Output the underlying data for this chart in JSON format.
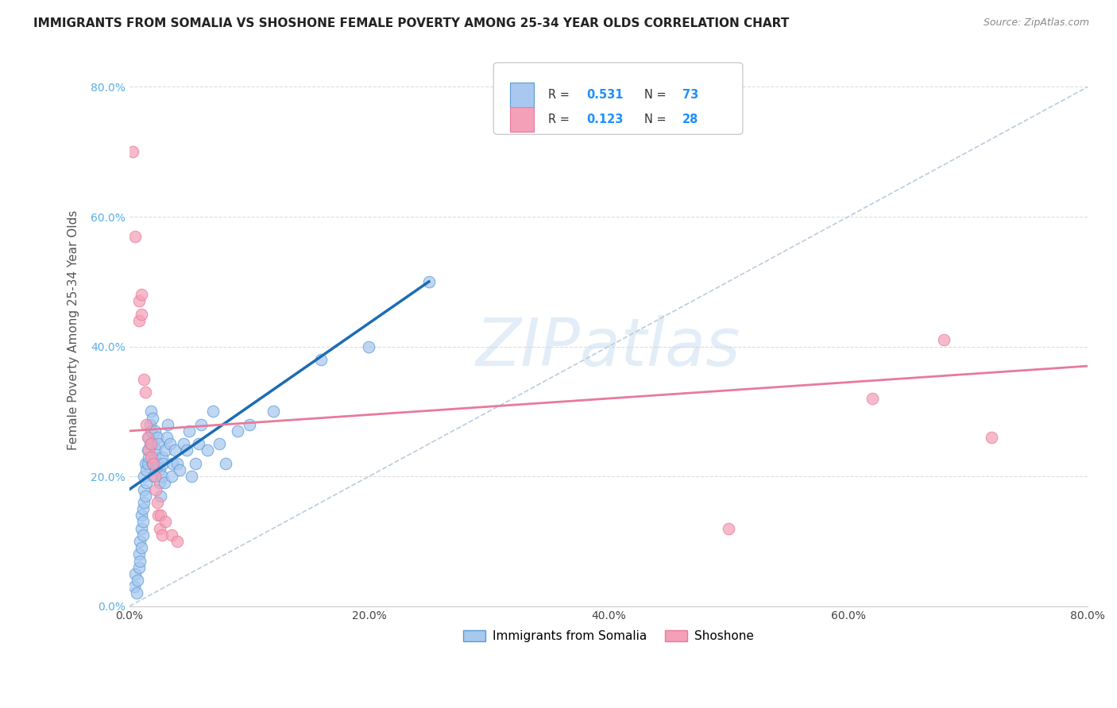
{
  "title": "IMMIGRANTS FROM SOMALIA VS SHOSHONE FEMALE POVERTY AMONG 25-34 YEAR OLDS CORRELATION CHART",
  "source": "Source: ZipAtlas.com",
  "ylabel": "Female Poverty Among 25-34 Year Olds",
  "ytick_values": [
    0,
    20,
    40,
    60,
    80
  ],
  "xtick_values": [
    0,
    20,
    40,
    60,
    80
  ],
  "xlim": [
    0,
    80
  ],
  "ylim": [
    0,
    85
  ],
  "somalia_color": "#A8C8F0",
  "shoshone_color": "#F4A0B8",
  "somalia_edge": "#5A9BD4",
  "shoshone_edge": "#E87A9A",
  "R_somalia": 0.531,
  "N_somalia": 73,
  "R_shoshone": 0.123,
  "N_shoshone": 28,
  "legend_R_color": "#1E90FF",
  "legend_N_color": "#1E90FF",
  "trendline_somalia_color": "#1C6CB5",
  "trendline_shoshone_color": "#E87A9A",
  "diagonal_color": "#BBCCDD",
  "watermark": "ZIPatlas",
  "somalia_points": [
    [
      0.4,
      3
    ],
    [
      0.5,
      5
    ],
    [
      0.6,
      2
    ],
    [
      0.7,
      4
    ],
    [
      0.8,
      6
    ],
    [
      0.8,
      8
    ],
    [
      0.9,
      7
    ],
    [
      0.9,
      10
    ],
    [
      1.0,
      9
    ],
    [
      1.0,
      12
    ],
    [
      1.0,
      14
    ],
    [
      1.1,
      11
    ],
    [
      1.1,
      15
    ],
    [
      1.1,
      13
    ],
    [
      1.2,
      16
    ],
    [
      1.2,
      18
    ],
    [
      1.2,
      20
    ],
    [
      1.3,
      17
    ],
    [
      1.3,
      22
    ],
    [
      1.4,
      19
    ],
    [
      1.4,
      21
    ],
    [
      1.5,
      24
    ],
    [
      1.5,
      22
    ],
    [
      1.6,
      26
    ],
    [
      1.6,
      23
    ],
    [
      1.7,
      25
    ],
    [
      1.7,
      28
    ],
    [
      1.8,
      27
    ],
    [
      1.8,
      30
    ],
    [
      1.9,
      29
    ],
    [
      1.9,
      22
    ],
    [
      2.0,
      25
    ],
    [
      2.0,
      20
    ],
    [
      2.1,
      23
    ],
    [
      2.1,
      27
    ],
    [
      2.2,
      21
    ],
    [
      2.2,
      24
    ],
    [
      2.3,
      22
    ],
    [
      2.3,
      26
    ],
    [
      2.4,
      25
    ],
    [
      2.5,
      19
    ],
    [
      2.5,
      21
    ],
    [
      2.6,
      17
    ],
    [
      2.7,
      20
    ],
    [
      2.7,
      23
    ],
    [
      2.8,
      22
    ],
    [
      2.9,
      19
    ],
    [
      3.0,
      24
    ],
    [
      3.1,
      26
    ],
    [
      3.2,
      28
    ],
    [
      3.4,
      25
    ],
    [
      3.5,
      20
    ],
    [
      3.6,
      22
    ],
    [
      3.8,
      24
    ],
    [
      4.0,
      22
    ],
    [
      4.2,
      21
    ],
    [
      4.5,
      25
    ],
    [
      4.8,
      24
    ],
    [
      5.0,
      27
    ],
    [
      5.2,
      20
    ],
    [
      5.5,
      22
    ],
    [
      5.8,
      25
    ],
    [
      6.0,
      28
    ],
    [
      6.5,
      24
    ],
    [
      7.0,
      30
    ],
    [
      7.5,
      25
    ],
    [
      8.0,
      22
    ],
    [
      9.0,
      27
    ],
    [
      10.0,
      28
    ],
    [
      12.0,
      30
    ],
    [
      16.0,
      38
    ],
    [
      20.0,
      40
    ],
    [
      25.0,
      50
    ]
  ],
  "shoshone_points": [
    [
      0.3,
      70
    ],
    [
      0.5,
      57
    ],
    [
      0.8,
      47
    ],
    [
      0.8,
      44
    ],
    [
      1.0,
      48
    ],
    [
      1.0,
      45
    ],
    [
      1.2,
      35
    ],
    [
      1.3,
      33
    ],
    [
      1.4,
      28
    ],
    [
      1.5,
      26
    ],
    [
      1.6,
      24
    ],
    [
      1.8,
      25
    ],
    [
      1.8,
      23
    ],
    [
      2.0,
      22
    ],
    [
      2.1,
      20
    ],
    [
      2.2,
      18
    ],
    [
      2.3,
      16
    ],
    [
      2.4,
      14
    ],
    [
      2.5,
      12
    ],
    [
      2.6,
      14
    ],
    [
      2.7,
      11
    ],
    [
      3.0,
      13
    ],
    [
      3.5,
      11
    ],
    [
      4.0,
      10
    ],
    [
      50.0,
      12
    ],
    [
      62.0,
      32
    ],
    [
      68.0,
      41
    ],
    [
      72.0,
      26
    ]
  ],
  "somalia_trendline": [
    [
      0,
      18
    ],
    [
      25,
      50
    ]
  ],
  "shoshone_trendline": [
    [
      0,
      27
    ],
    [
      80,
      37
    ]
  ]
}
